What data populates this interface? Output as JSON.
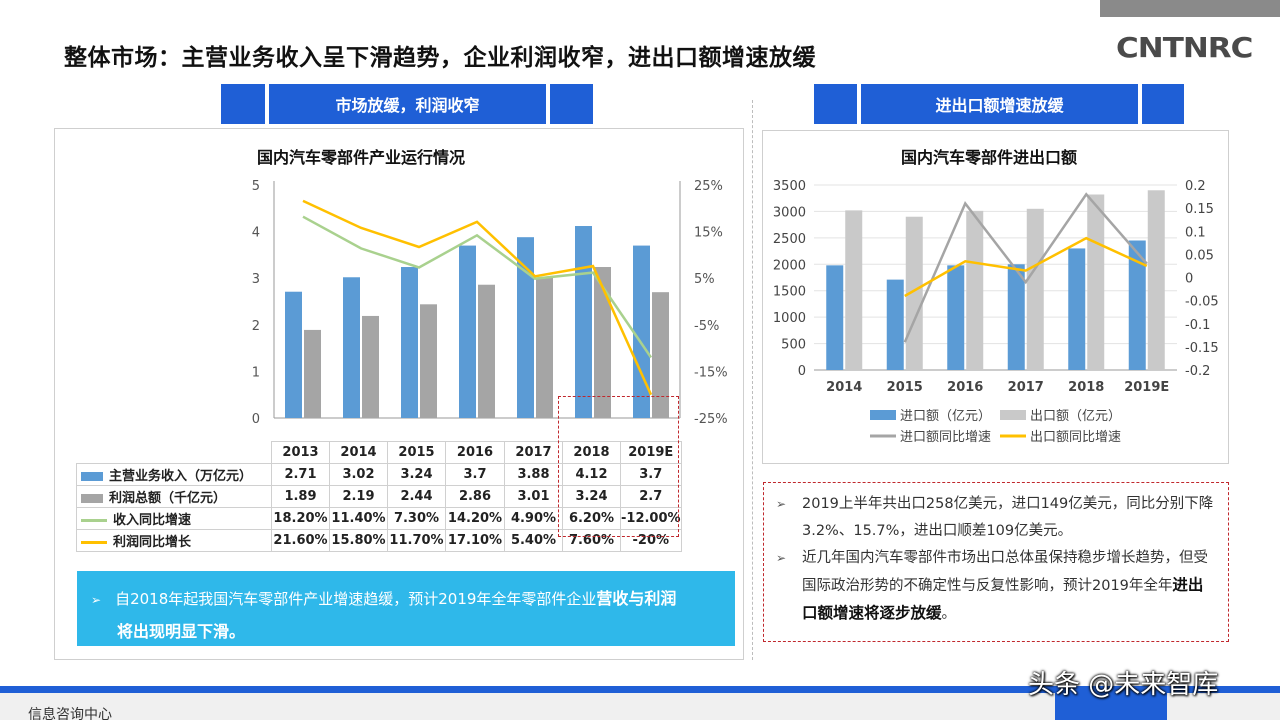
{
  "page_title": "整体市场：主营业务收入呈下滑趋势，企业利润收窄，进出口额增速放缓",
  "logo_text": "CNTNRC",
  "left_tab_label": "市场放缓，利润收窄",
  "right_tab_label": "进出口额增速放缓",
  "left_chart": {
    "title": "国内汽车零部件产业运行情况",
    "years": [
      "2013",
      "2014",
      "2015",
      "2016",
      "2017",
      "2018",
      "2019E"
    ],
    "y_left_ticks": [
      "5",
      "4",
      "3",
      "2",
      "1",
      "0"
    ],
    "y_right_ticks": [
      "25%",
      "15%",
      "5%",
      "-5%",
      "-15%",
      "-25%"
    ],
    "table": [
      {
        "label": "主营业务收入（万亿元）",
        "values": [
          "2.71",
          "3.02",
          "3.24",
          "3.7",
          "3.88",
          "4.12",
          "3.7"
        ]
      },
      {
        "label": "利润总额（千亿元）",
        "values": [
          "1.89",
          "2.19",
          "2.44",
          "2.86",
          "3.01",
          "3.24",
          "2.7"
        ]
      },
      {
        "label": "收入同比增速",
        "values": [
          "18.20%",
          "11.40%",
          "7.30%",
          "14.20%",
          "4.90%",
          "6.20%",
          "-12.00%"
        ]
      },
      {
        "label": "利润同比增长",
        "values": [
          "21.60%",
          "15.80%",
          "11.70%",
          "17.10%",
          "5.40%",
          "7.60%",
          "-20%"
        ]
      }
    ]
  },
  "right_chart": {
    "title": "国内汽车零部件进出口额",
    "years": [
      "2014",
      "2015",
      "2016",
      "2017",
      "2018",
      "2019E"
    ],
    "y_left_ticks": [
      "3500",
      "3000",
      "2500",
      "2000",
      "1500",
      "1000",
      "500",
      "0"
    ],
    "y_right_ticks": [
      "0.2",
      "0.15",
      "0.1",
      "0.05",
      "0",
      "-0.05",
      "-0.1",
      "-0.15",
      "-0.2"
    ],
    "legend": [
      "进口额（亿元）",
      "出口额（亿元）",
      "进口额同比增速",
      "出口额同比增速"
    ]
  },
  "chart_data": [
    {
      "type": "bar",
      "title": "国内汽车零部件产业运行情况",
      "categories": [
        "2013",
        "2014",
        "2015",
        "2016",
        "2017",
        "2018",
        "2019E"
      ],
      "series": [
        {
          "name": "主营业务收入（万亿元）",
          "type": "bar",
          "axis": "left",
          "values": [
            2.71,
            3.02,
            3.24,
            3.7,
            3.88,
            4.12,
            3.7
          ]
        },
        {
          "name": "利润总额（千亿元）",
          "type": "bar",
          "axis": "left",
          "values": [
            1.89,
            2.19,
            2.44,
            2.86,
            3.01,
            3.24,
            2.7
          ]
        },
        {
          "name": "收入同比增速",
          "type": "line",
          "axis": "right",
          "values": [
            18.2,
            11.4,
            7.3,
            14.2,
            4.9,
            6.2,
            -12.0
          ]
        },
        {
          "name": "利润同比增长",
          "type": "line",
          "axis": "right",
          "values": [
            21.6,
            15.8,
            11.7,
            17.1,
            5.4,
            7.6,
            -20.0
          ]
        }
      ],
      "ylim_left": [
        0,
        5
      ],
      "ylim_right": [
        -25,
        25
      ],
      "colors": [
        "#5b9bd5",
        "#a5a5a5",
        "#a9d18e",
        "#ffc000"
      ]
    },
    {
      "type": "bar",
      "title": "国内汽车零部件进出口额",
      "categories": [
        "2014",
        "2015",
        "2016",
        "2017",
        "2018",
        "2019E"
      ],
      "series": [
        {
          "name": "进口额（亿元）",
          "type": "bar",
          "axis": "left",
          "values": [
            1980,
            1710,
            1980,
            2000,
            2300,
            2450
          ]
        },
        {
          "name": "出口额（亿元）",
          "type": "bar",
          "axis": "left",
          "values": [
            3020,
            2900,
            3010,
            3050,
            3320,
            3400
          ]
        },
        {
          "name": "进口额同比增速",
          "type": "line",
          "axis": "right",
          "values": [
            null,
            -0.14,
            0.16,
            -0.01,
            0.18,
            0.03
          ]
        },
        {
          "name": "出口额同比增速",
          "type": "line",
          "axis": "right",
          "values": [
            null,
            -0.04,
            0.035,
            0.015,
            0.085,
            0.025
          ]
        }
      ],
      "ylim_left": [
        0,
        3500
      ],
      "ylim_right": [
        -0.2,
        0.2
      ],
      "colors": [
        "#5b9bd5",
        "#c9c9c9",
        "#a5a5a5",
        "#ffc000"
      ]
    }
  ],
  "left_callout": {
    "text_1": "自2018年起我国汽车零部件产业增速趋缓，预计2019年全年零部件企业",
    "text_bold_1": "营收与利润",
    "text_bold_2": "将出现明显下滑。"
  },
  "notes": {
    "note_1": "2019上半年共出口258亿美元，进口149亿美元，同比分别下降3.2%、15.7%，进出口顺差109亿美元。",
    "note_2_a": "近几年国内汽车零部件市场出口总体虽保持稳步增长趋势，但受国际政治形势的不确定性与反复性影响，预计2019年全年",
    "note_2_bold": "进出口额增速将逐步放缓",
    "note_2_b": "。"
  },
  "bullet_symbol": "➢",
  "footer_text": "信息咨询中心",
  "watermark": "头条 @未来智库"
}
